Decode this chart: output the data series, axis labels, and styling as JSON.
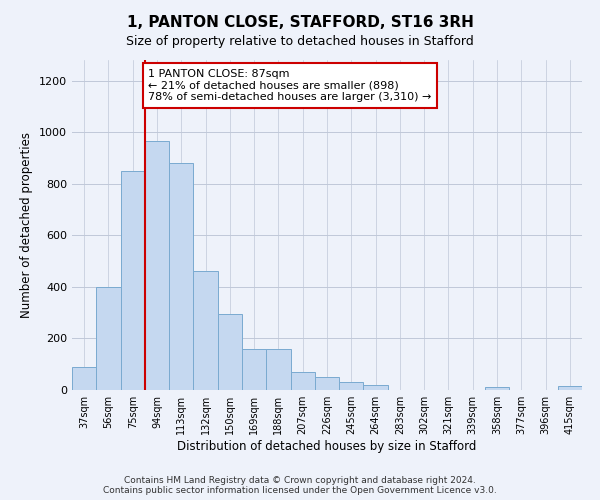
{
  "title": "1, PANTON CLOSE, STAFFORD, ST16 3RH",
  "subtitle": "Size of property relative to detached houses in Stafford",
  "xlabel": "Distribution of detached houses by size in Stafford",
  "ylabel": "Number of detached properties",
  "categories": [
    "37sqm",
    "56sqm",
    "75sqm",
    "94sqm",
    "113sqm",
    "132sqm",
    "150sqm",
    "169sqm",
    "188sqm",
    "207sqm",
    "226sqm",
    "245sqm",
    "264sqm",
    "283sqm",
    "302sqm",
    "321sqm",
    "339sqm",
    "358sqm",
    "377sqm",
    "396sqm",
    "415sqm"
  ],
  "values": [
    90,
    400,
    850,
    965,
    880,
    460,
    295,
    160,
    160,
    70,
    52,
    32,
    20,
    0,
    0,
    0,
    0,
    10,
    0,
    0,
    15
  ],
  "bar_color": "#c5d8f0",
  "bar_edge_color": "#7aaad0",
  "annotation_text": "1 PANTON CLOSE: 87sqm\n← 21% of detached houses are smaller (898)\n78% of semi-detached houses are larger (3,310) →",
  "annotation_box_color": "#ffffff",
  "annotation_box_edge_color": "#cc0000",
  "vline_color": "#cc0000",
  "ylim": [
    0,
    1280
  ],
  "yticks": [
    0,
    200,
    400,
    600,
    800,
    1000,
    1200
  ],
  "footnote": "Contains HM Land Registry data © Crown copyright and database right 2024.\nContains public sector information licensed under the Open Government Licence v3.0.",
  "background_color": "#eef2fa",
  "plot_bg_color": "#eef2fa",
  "grid_color": "#c0c8d8"
}
